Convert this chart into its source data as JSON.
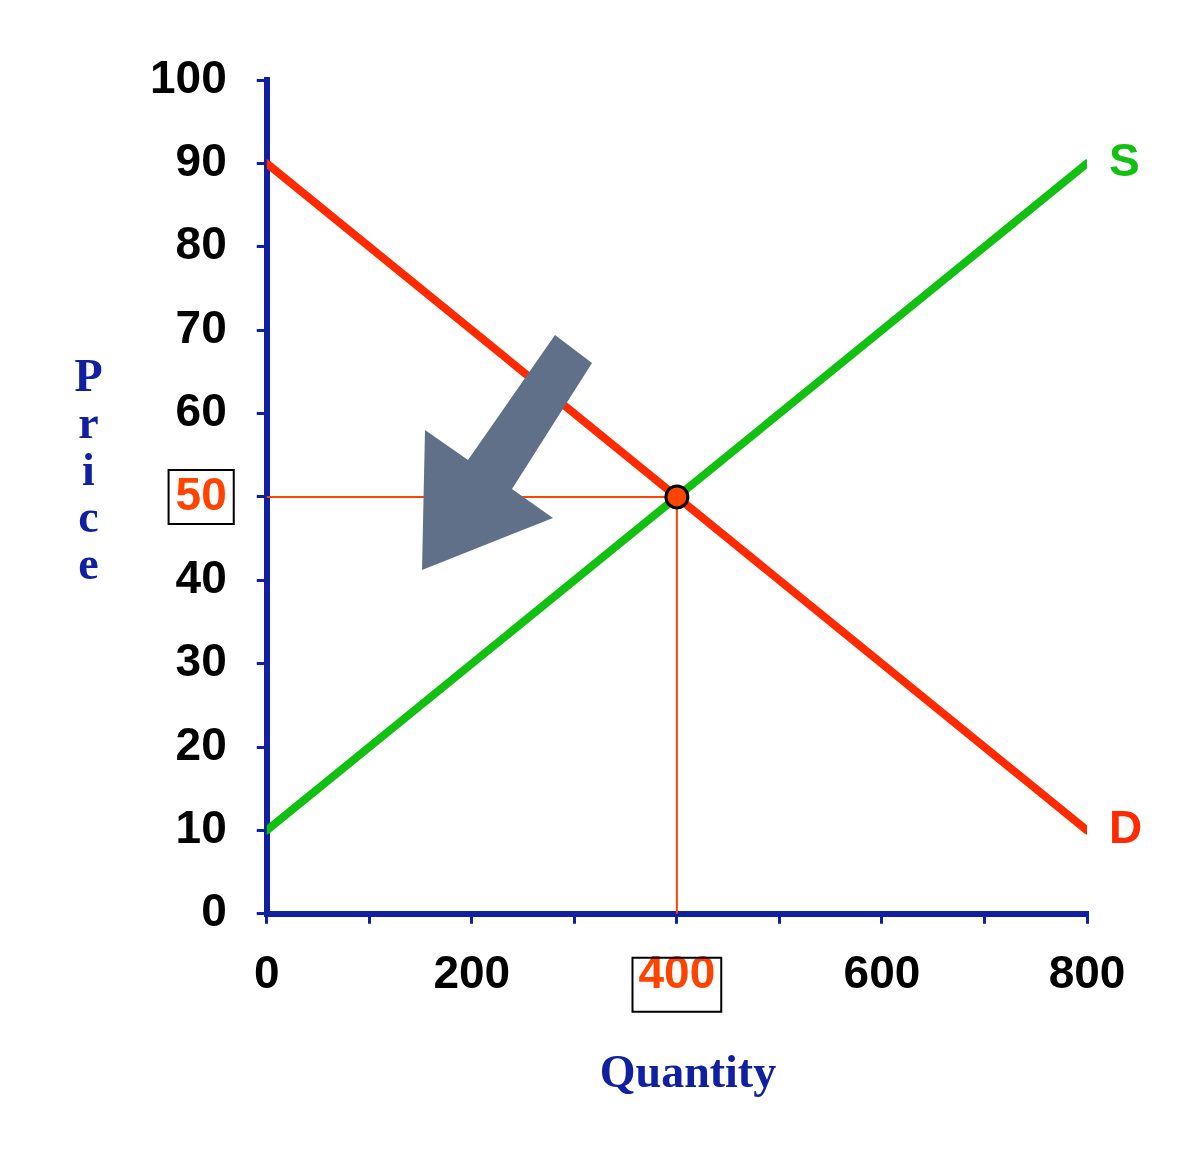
{
  "chart_data": {
    "type": "line",
    "xlabel": "Quantity",
    "ylabel": "Price",
    "xlim": [
      0,
      800
    ],
    "ylim": [
      0,
      100
    ],
    "xticks": [
      0,
      {
        "value": 100,
        "label": null
      },
      200,
      {
        "value": 300,
        "label": null
      },
      400,
      {
        "value": 500,
        "label": null
      },
      600,
      {
        "value": 700,
        "label": null
      },
      800
    ],
    "yticks": [
      0,
      10,
      20,
      30,
      40,
      50,
      60,
      70,
      80,
      90,
      100
    ],
    "grid": false,
    "legend": false,
    "line_style": "solid",
    "series": [
      {
        "name": "D",
        "color": "#ff2a00",
        "x": [
          0,
          800
        ],
        "values": [
          90,
          10
        ]
      },
      {
        "name": "S",
        "color": "#11c011",
        "x": [
          0,
          800
        ],
        "values": [
          10,
          90
        ]
      },
      {
        "type": "scatter",
        "color": "#ff4400",
        "x": [
          400
        ],
        "values": [
          50
        ],
        "marker": "circle"
      }
    ],
    "ref_lines": [
      {
        "axis": "x",
        "value": 400,
        "color": "#ff4400"
      },
      {
        "axis": "y",
        "value": 50,
        "color": "#ff4400"
      }
    ]
  }
}
